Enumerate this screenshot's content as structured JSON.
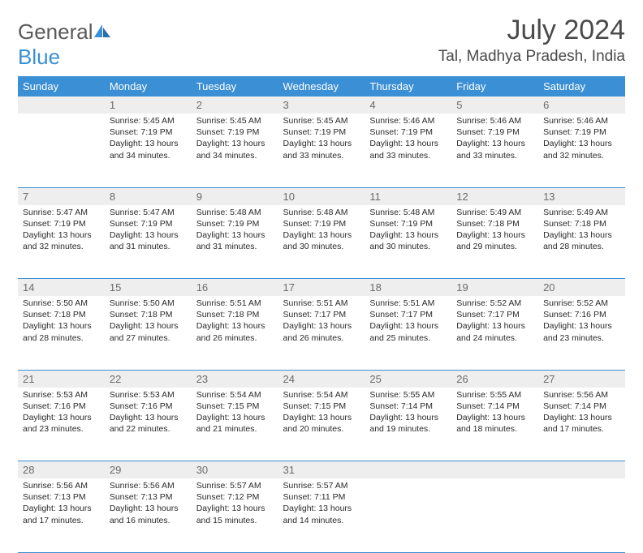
{
  "logo": {
    "word1": "General",
    "word2": "Blue"
  },
  "title": "July 2024",
  "location": "Tal, Madhya Pradesh, India",
  "colors": {
    "header_bg": "#3b8fd4",
    "header_fg": "#ffffff",
    "daynum_bg": "#eeeeee",
    "daynum_fg": "#6b6b6b",
    "text": "#2a2a2a",
    "rule": "#3b8fd4",
    "logo_gray": "#5a5a5a",
    "logo_blue": "#3b8fd4"
  },
  "day_headers": [
    "Sunday",
    "Monday",
    "Tuesday",
    "Wednesday",
    "Thursday",
    "Friday",
    "Saturday"
  ],
  "weeks": [
    [
      null,
      {
        "n": "1",
        "sr": "5:45 AM",
        "ss": "7:19 PM",
        "dl": "13 hours and 34 minutes."
      },
      {
        "n": "2",
        "sr": "5:45 AM",
        "ss": "7:19 PM",
        "dl": "13 hours and 34 minutes."
      },
      {
        "n": "3",
        "sr": "5:45 AM",
        "ss": "7:19 PM",
        "dl": "13 hours and 33 minutes."
      },
      {
        "n": "4",
        "sr": "5:46 AM",
        "ss": "7:19 PM",
        "dl": "13 hours and 33 minutes."
      },
      {
        "n": "5",
        "sr": "5:46 AM",
        "ss": "7:19 PM",
        "dl": "13 hours and 33 minutes."
      },
      {
        "n": "6",
        "sr": "5:46 AM",
        "ss": "7:19 PM",
        "dl": "13 hours and 32 minutes."
      }
    ],
    [
      {
        "n": "7",
        "sr": "5:47 AM",
        "ss": "7:19 PM",
        "dl": "13 hours and 32 minutes."
      },
      {
        "n": "8",
        "sr": "5:47 AM",
        "ss": "7:19 PM",
        "dl": "13 hours and 31 minutes."
      },
      {
        "n": "9",
        "sr": "5:48 AM",
        "ss": "7:19 PM",
        "dl": "13 hours and 31 minutes."
      },
      {
        "n": "10",
        "sr": "5:48 AM",
        "ss": "7:19 PM",
        "dl": "13 hours and 30 minutes."
      },
      {
        "n": "11",
        "sr": "5:48 AM",
        "ss": "7:19 PM",
        "dl": "13 hours and 30 minutes."
      },
      {
        "n": "12",
        "sr": "5:49 AM",
        "ss": "7:18 PM",
        "dl": "13 hours and 29 minutes."
      },
      {
        "n": "13",
        "sr": "5:49 AM",
        "ss": "7:18 PM",
        "dl": "13 hours and 28 minutes."
      }
    ],
    [
      {
        "n": "14",
        "sr": "5:50 AM",
        "ss": "7:18 PM",
        "dl": "13 hours and 28 minutes."
      },
      {
        "n": "15",
        "sr": "5:50 AM",
        "ss": "7:18 PM",
        "dl": "13 hours and 27 minutes."
      },
      {
        "n": "16",
        "sr": "5:51 AM",
        "ss": "7:18 PM",
        "dl": "13 hours and 26 minutes."
      },
      {
        "n": "17",
        "sr": "5:51 AM",
        "ss": "7:17 PM",
        "dl": "13 hours and 26 minutes."
      },
      {
        "n": "18",
        "sr": "5:51 AM",
        "ss": "7:17 PM",
        "dl": "13 hours and 25 minutes."
      },
      {
        "n": "19",
        "sr": "5:52 AM",
        "ss": "7:17 PM",
        "dl": "13 hours and 24 minutes."
      },
      {
        "n": "20",
        "sr": "5:52 AM",
        "ss": "7:16 PM",
        "dl": "13 hours and 23 minutes."
      }
    ],
    [
      {
        "n": "21",
        "sr": "5:53 AM",
        "ss": "7:16 PM",
        "dl": "13 hours and 23 minutes."
      },
      {
        "n": "22",
        "sr": "5:53 AM",
        "ss": "7:16 PM",
        "dl": "13 hours and 22 minutes."
      },
      {
        "n": "23",
        "sr": "5:54 AM",
        "ss": "7:15 PM",
        "dl": "13 hours and 21 minutes."
      },
      {
        "n": "24",
        "sr": "5:54 AM",
        "ss": "7:15 PM",
        "dl": "13 hours and 20 minutes."
      },
      {
        "n": "25",
        "sr": "5:55 AM",
        "ss": "7:14 PM",
        "dl": "13 hours and 19 minutes."
      },
      {
        "n": "26",
        "sr": "5:55 AM",
        "ss": "7:14 PM",
        "dl": "13 hours and 18 minutes."
      },
      {
        "n": "27",
        "sr": "5:56 AM",
        "ss": "7:14 PM",
        "dl": "13 hours and 17 minutes."
      }
    ],
    [
      {
        "n": "28",
        "sr": "5:56 AM",
        "ss": "7:13 PM",
        "dl": "13 hours and 17 minutes."
      },
      {
        "n": "29",
        "sr": "5:56 AM",
        "ss": "7:13 PM",
        "dl": "13 hours and 16 minutes."
      },
      {
        "n": "30",
        "sr": "5:57 AM",
        "ss": "7:12 PM",
        "dl": "13 hours and 15 minutes."
      },
      {
        "n": "31",
        "sr": "5:57 AM",
        "ss": "7:11 PM",
        "dl": "13 hours and 14 minutes."
      },
      null,
      null,
      null
    ]
  ],
  "labels": {
    "sunrise": "Sunrise:",
    "sunset": "Sunset:",
    "daylight": "Daylight:"
  }
}
